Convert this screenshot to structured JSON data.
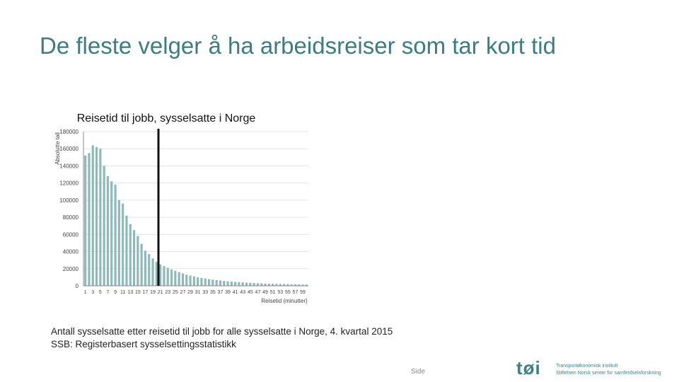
{
  "slide": {
    "title": "De fleste velger å ha arbeidsreiser som tar kort tid",
    "footnote_line1": "Antall sysselsatte etter reisetid til jobb for alle sysselsatte i Norge, 4. kvartal 2015",
    "footnote_line2": "SSB: Registerbasert sysselsettingsstatistikk",
    "page_label": "Side",
    "logo": {
      "mark": "tøi",
      "line1": "Transportøkonomisk institutt",
      "line2": "Stiftelsen Norsk senter for samferdselsforskning"
    }
  },
  "colors": {
    "title": "#3b7d80",
    "bar": "#8fb9b9",
    "marker": "#111111",
    "grid": "#e3e3e3"
  },
  "chart_data": {
    "type": "bar",
    "title": "Reisetid til jobb, sysselsatte i Norge",
    "ylabel": "Absolutte tall",
    "xlabel": "Reisetid (minutter)",
    "ylim": [
      0,
      180000
    ],
    "yticks": [
      0,
      20000,
      40000,
      60000,
      80000,
      100000,
      120000,
      140000,
      160000,
      180000
    ],
    "grid": true,
    "x": [
      1,
      2,
      3,
      4,
      5,
      6,
      7,
      8,
      9,
      10,
      11,
      12,
      13,
      14,
      15,
      16,
      17,
      18,
      19,
      20,
      21,
      22,
      23,
      24,
      25,
      26,
      27,
      28,
      29,
      30,
      31,
      32,
      33,
      34,
      35,
      36,
      37,
      38,
      39,
      40,
      41,
      42,
      43,
      44,
      45,
      46,
      47,
      48,
      49,
      50,
      51,
      52,
      53,
      54,
      55,
      56,
      57,
      58,
      59,
      60
    ],
    "xtick_labels": [
      "1",
      "3",
      "5",
      "7",
      "9",
      "11",
      "13",
      "15",
      "17",
      "19",
      "21",
      "23",
      "25",
      "27",
      "29",
      "31",
      "33",
      "35",
      "37",
      "39",
      "41",
      "43",
      "45",
      "47",
      "49",
      "51",
      "53",
      "55",
      "57",
      "59"
    ],
    "values": [
      152000,
      155000,
      164000,
      162000,
      160000,
      140000,
      128000,
      122000,
      118000,
      100000,
      96000,
      82000,
      72000,
      65000,
      58000,
      49000,
      41000,
      37000,
      32000,
      28000,
      25000,
      23000,
      21000,
      19000,
      17500,
      16000,
      14500,
      13000,
      12000,
      11000,
      10000,
      9200,
      8500,
      7800,
      7200,
      6700,
      6200,
      5700,
      5300,
      4900,
      4600,
      4300,
      4000,
      3700,
      3500,
      3200,
      3000,
      2800,
      2600,
      2400,
      2300,
      2200,
      2100,
      2000,
      1900,
      1800,
      1700,
      1600,
      1500,
      1400
    ],
    "marker_x": 20
  }
}
